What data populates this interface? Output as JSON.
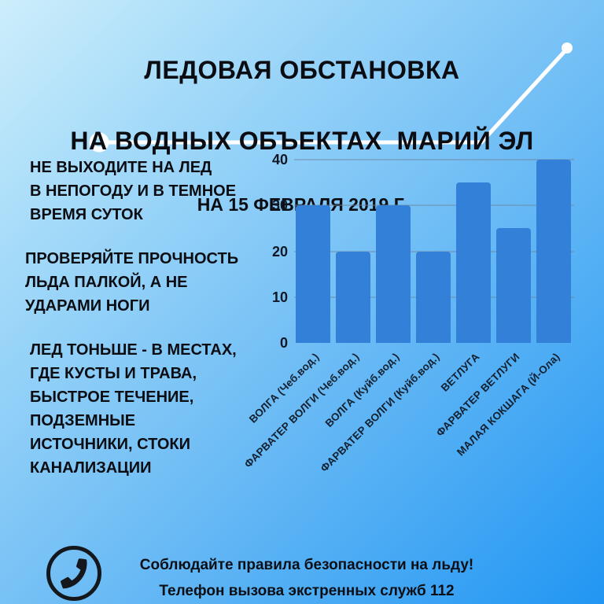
{
  "header": {
    "title_line1": "ЛЕДОВАЯ ОБСТАНОВКА",
    "title_line2": "НА ВОДНЫХ ОБЪЕКТАХ  МАРИЙ ЭЛ",
    "subtitle": "НА 15 ФЕВРАЛЯ 2019 Г."
  },
  "tips": [
    {
      "text": "НЕ ВЫХОДИТЕ НА ЛЕД\nВ НЕПОГОДУ И В ТЕМНОЕ\nВРЕМЯ СУТОК"
    },
    {
      "text": "ПРОВЕРЯЙТЕ ПРОЧНОСТЬ\nЛЬДА ПАЛКОЙ, А НЕ\nУДАРАМИ НОГИ"
    },
    {
      "text": "ЛЕД ТОНЬШЕ - В МЕСТАХ,\nГДЕ КУСТЫ И ТРАВА,\nБЫСТРОЕ ТЕЧЕНИЕ,\nПОДЗЕМНЫЕ\nИСТОЧНИКИ, СТОКИ\nКАНАЛИЗАЦИИ"
    }
  ],
  "chart_data": {
    "type": "bar",
    "categories": [
      "ВОЛГА (Чеб.вод.)",
      "ФАРВАТЕР ВОЛГИ (Чеб.вод.)",
      "ВОЛГА (Куйб.вод.)",
      "ФАРВАТЕР ВОЛГИ (Куйб.вод.)",
      "ВЕТЛУГА",
      "ФАРВАТЕР ВЕТЛУГИ",
      "МАЛАЯ КОКШАГА (Й-Ола)"
    ],
    "values": [
      30,
      20,
      30,
      20,
      35,
      25,
      40
    ],
    "yticks": [
      0,
      10,
      20,
      30,
      40
    ],
    "ylim": [
      0,
      40
    ],
    "grid": true,
    "legend": "none",
    "title": "",
    "xlabel": "",
    "ylabel": "",
    "bar_color": "#3380d8"
  },
  "footer": {
    "icon": "phone-icon",
    "line1": "Соблюдайте правила безопасности на льду!",
    "line2": "Телефон вызова экстренных служб 112"
  },
  "colors": {
    "background_top": "#cdeefb",
    "background_bottom": "#2196f3",
    "bar": "#3380d8",
    "text": "#0b0d12",
    "decor_line": "#ffffff"
  }
}
